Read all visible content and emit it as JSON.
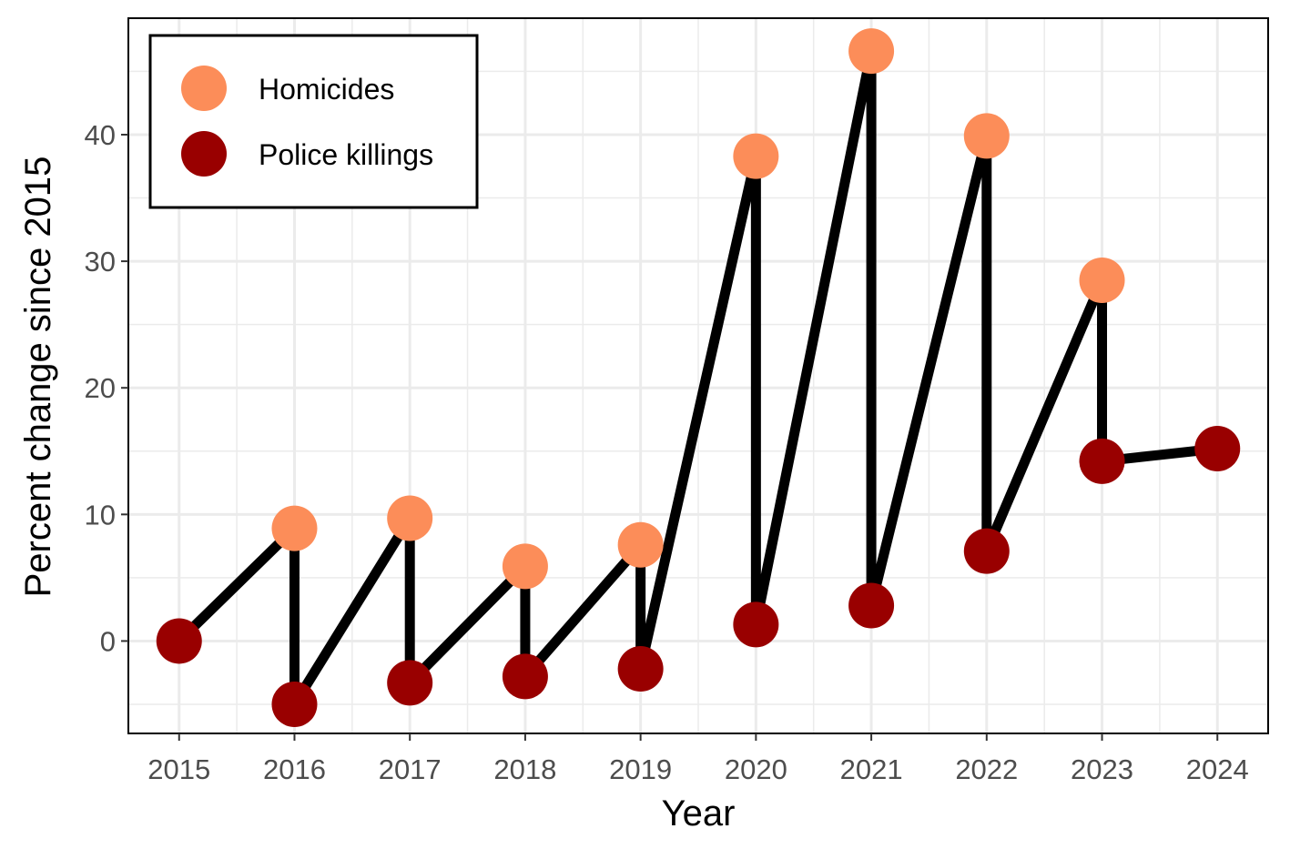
{
  "chart_data": {
    "type": "scatter",
    "xlabel": "Year",
    "ylabel": "Percent change since 2015",
    "x_ticks": [
      2015,
      2016,
      2017,
      2018,
      2019,
      2020,
      2021,
      2022,
      2023,
      2024
    ],
    "y_ticks": [
      0,
      10,
      20,
      30,
      40
    ],
    "xlim": [
      2014.56,
      2024.44
    ],
    "ylim": [
      -7.3,
      49.2
    ],
    "grid": true,
    "legend_position": "top-left",
    "series": [
      {
        "name": "Homicides",
        "color": "#FC8D59",
        "x": [
          2016,
          2017,
          2018,
          2019,
          2020,
          2021,
          2022,
          2023
        ],
        "values": [
          8.9,
          9.7,
          5.9,
          7.6,
          38.3,
          46.6,
          39.9,
          28.5
        ]
      },
      {
        "name": "Police killings",
        "color": "#990000",
        "x": [
          2015,
          2016,
          2017,
          2018,
          2019,
          2020,
          2021,
          2022,
          2023,
          2024
        ],
        "values": [
          0.0,
          -5.0,
          -3.3,
          -2.8,
          -2.2,
          1.3,
          2.8,
          7.1,
          14.2,
          15.2
        ]
      }
    ],
    "connector": {
      "color": "#000000",
      "path": [
        [
          2015,
          0.0
        ],
        [
          2016,
          8.9
        ],
        [
          2016,
          -5.0
        ],
        [
          2017,
          9.7
        ],
        [
          2017,
          -3.3
        ],
        [
          2018,
          5.9
        ],
        [
          2018,
          -2.8
        ],
        [
          2019,
          7.6
        ],
        [
          2019,
          -2.2
        ],
        [
          2020,
          38.3
        ],
        [
          2020,
          1.3
        ],
        [
          2021,
          46.6
        ],
        [
          2021,
          2.8
        ],
        [
          2022,
          39.9
        ],
        [
          2022,
          7.1
        ],
        [
          2023,
          28.5
        ],
        [
          2023,
          14.2
        ],
        [
          2024,
          15.2
        ]
      ]
    }
  }
}
